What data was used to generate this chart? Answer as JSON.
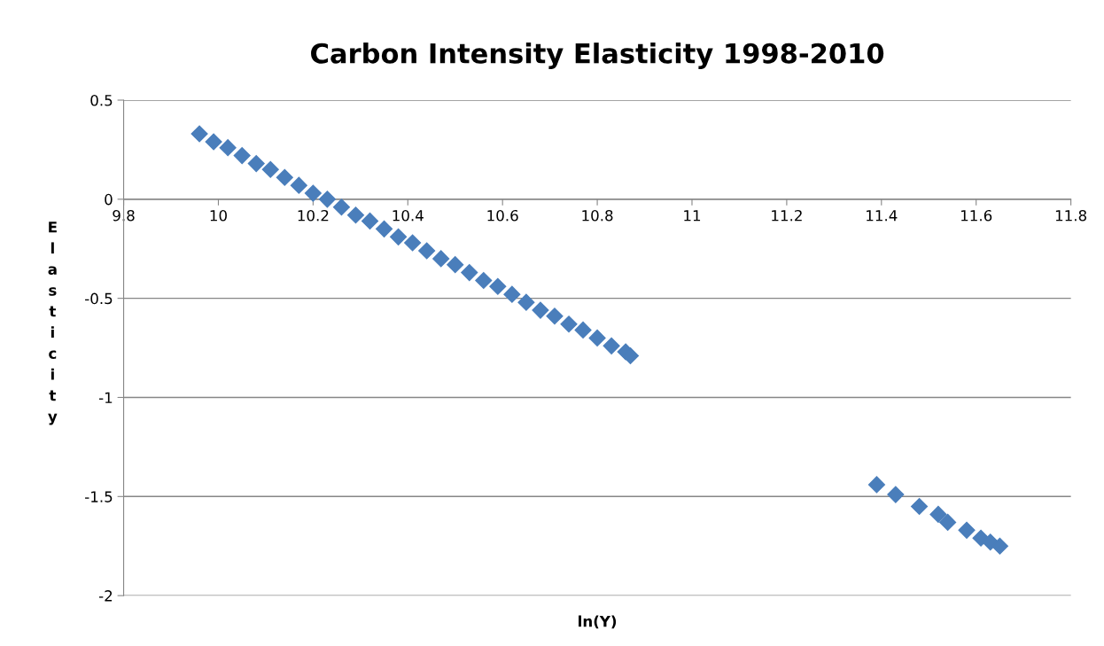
{
  "chart_data": {
    "type": "scatter",
    "title": "Carbon Intensity Elasticity 1998-2010",
    "xlabel": "ln(Y)",
    "ylabel": "Elasticity",
    "x": [
      9.96,
      9.99,
      10.02,
      10.05,
      10.08,
      10.11,
      10.14,
      10.17,
      10.2,
      10.23,
      10.26,
      10.29,
      10.32,
      10.35,
      10.38,
      10.41,
      10.44,
      10.47,
      10.5,
      10.53,
      10.56,
      10.59,
      10.62,
      10.65,
      10.68,
      10.71,
      10.74,
      10.77,
      10.8,
      10.83,
      10.86,
      10.87,
      11.39,
      11.43,
      11.48,
      11.52,
      11.54,
      11.58,
      11.61,
      11.63,
      11.65
    ],
    "series": [
      {
        "color": "#4a7ebb",
        "values": [
          0.33,
          0.29,
          0.26,
          0.22,
          0.18,
          0.15,
          0.11,
          0.07,
          0.03,
          0.0,
          -0.04,
          -0.08,
          -0.11,
          -0.15,
          -0.19,
          -0.22,
          -0.26,
          -0.3,
          -0.33,
          -0.37,
          -0.41,
          -0.44,
          -0.48,
          -0.52,
          -0.56,
          -0.59,
          -0.63,
          -0.66,
          -0.7,
          -0.74,
          -0.77,
          -0.79,
          -1.44,
          -1.49,
          -1.55,
          -1.59,
          -1.63,
          -1.67,
          -1.71,
          -1.73,
          -1.75
        ]
      }
    ],
    "xlim": [
      9.8,
      11.8
    ],
    "xticks": [
      9.8,
      10,
      10.2,
      10.4,
      10.6,
      10.8,
      11,
      11.2,
      11.4,
      11.6,
      11.8
    ],
    "ylim": [
      -2,
      0.5
    ],
    "yticks": [
      -2,
      -1.5,
      -1,
      -0.5,
      0,
      0.5
    ],
    "grid": "y",
    "marker": "diamond"
  }
}
